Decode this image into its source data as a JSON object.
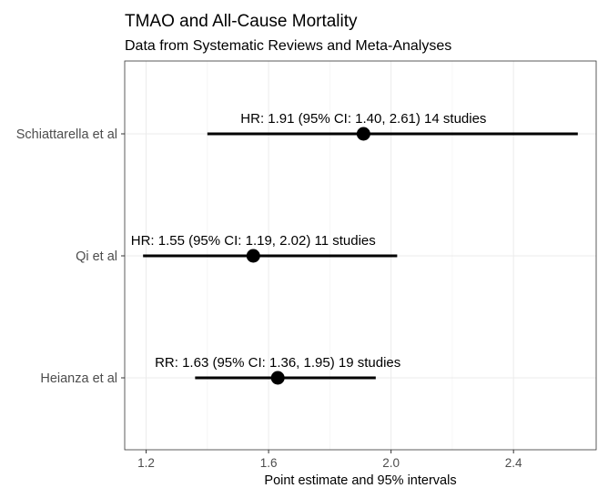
{
  "chart_data": {
    "type": "scatter",
    "title": "TMAO and All-Cause Mortality",
    "subtitle": "Data from Systematic Reviews and Meta-Analyses",
    "xlabel": "Point estimate and 95% intervals",
    "ylabel": "",
    "xlim": [
      1.13,
      2.67
    ],
    "x_ticks": [
      1.2,
      1.6,
      2.0,
      2.4
    ],
    "x_tick_labels": [
      "1.2",
      "1.6",
      "2.0",
      "2.4"
    ],
    "grid": true,
    "legend": "none",
    "categories": [
      "Schiattarella et al",
      "Qi et al",
      "Heianza et al"
    ],
    "rows": [
      {
        "study": "Schiattarella et al",
        "estimate": 1.91,
        "lower": 1.4,
        "upper": 2.61,
        "label": "HR: 1.91 (95% CI: 1.40, 2.61) 14 studies"
      },
      {
        "study": "Qi et al",
        "estimate": 1.55,
        "lower": 1.19,
        "upper": 2.02,
        "label": "HR: 1.55 (95% CI: 1.19, 2.02) 11 studies"
      },
      {
        "study": "Heianza et al",
        "estimate": 1.63,
        "lower": 1.36,
        "upper": 1.95,
        "label": "RR: 1.63 (95% CI: 1.36, 1.95) 19 studies"
      }
    ]
  }
}
